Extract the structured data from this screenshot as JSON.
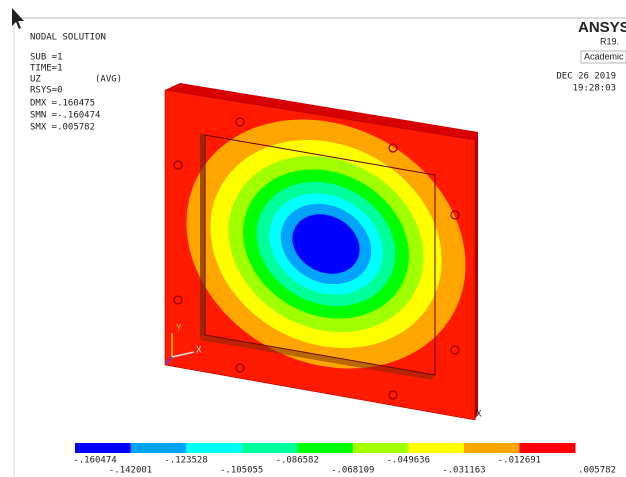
{
  "status": {
    "lines": [
      "NODAL SOLUTION",
      "SUB =1",
      "TIME=1",
      "UZ",
      "RSYS=0",
      "DMX =.160475",
      "SMN =-.160474",
      "SMX =.005782"
    ],
    "avg": "(AVG)"
  },
  "logo": {
    "title": "ANSYS",
    "version": "R19.",
    "license": "Academic"
  },
  "date": "DEC 26 2019",
  "time": "19:28:03",
  "triad": {
    "y": "Y",
    "x": "X"
  },
  "corner_label": "X",
  "legend": {
    "colors": [
      "#0000ff",
      "#00a4ff",
      "#00ffff",
      "#00ff9a",
      "#00ff00",
      "#a0ff00",
      "#ffff00",
      "#ffa500",
      "#ff0000"
    ],
    "labels": [
      "-.160474",
      "-.142001",
      "-.123528",
      "-.105055",
      "-.086582",
      "-.068109",
      "-.049636",
      "-.031163",
      "-.012691",
      ".005782"
    ]
  }
}
